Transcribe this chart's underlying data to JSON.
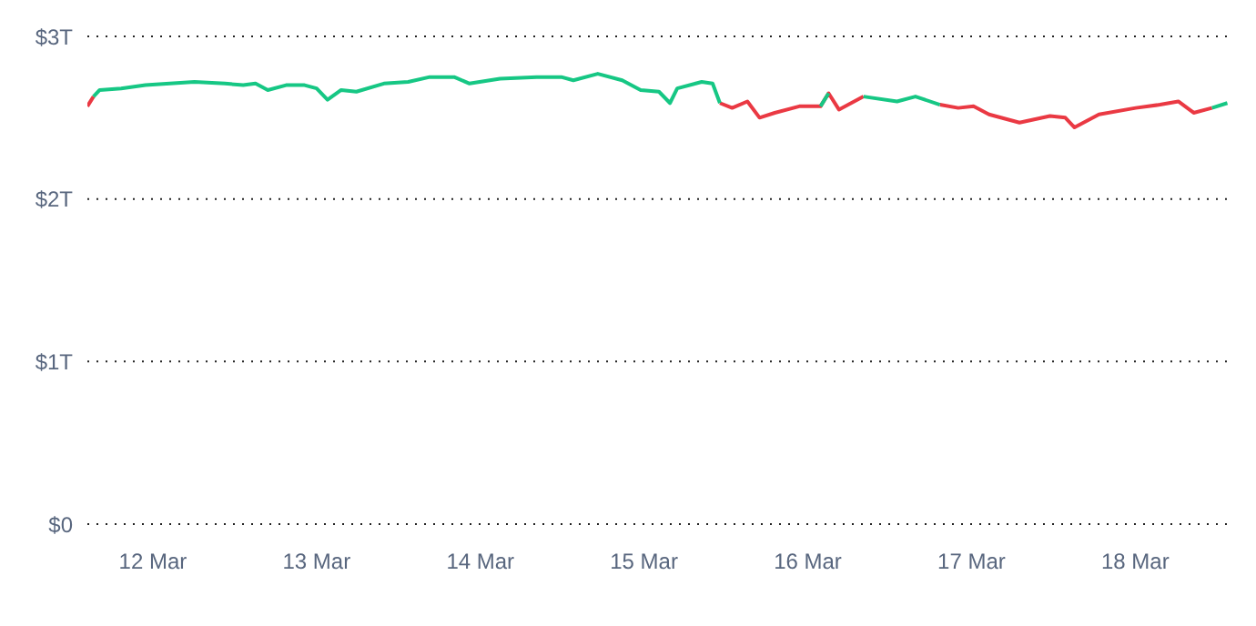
{
  "chart_data": {
    "type": "line",
    "x": [
      "--03-11T14:24",
      "--03-11T15:18",
      "--03-11T16:12",
      "--03-11T19:21",
      "--03-11T22:55",
      "--03-12T02:30",
      "--03-12T06:06",
      "--03-12T10:34",
      "--03-12T13:15",
      "--03-12T15:03",
      "--03-12T16:51",
      "--03-12T19:32",
      "--03-12T22:14",
      "--03-13T00:00",
      "--03-13T01:36",
      "--03-13T03:36",
      "--03-13T05:50",
      "--03-13T09:52",
      "--03-13T13:26",
      "--03-13T16:35",
      "--03-13T20:10",
      "--03-13T22:25",
      "--03-14T02:53",
      "--03-14T08:15",
      "--03-14T11:52",
      "--03-14T13:38",
      "--03-14T17:13",
      "--03-14T20:48",
      "--03-14T23:30",
      "--03-15T02:11",
      "--03-15T03:48",
      "--03-15T04:52",
      "--03-15T08:27",
      "--03-15T10:03",
      "--03-15T11:07",
      "--03-15T12:55",
      "--03-15T15:09",
      "--03-15T16:56",
      "--03-15T19:10",
      "--03-15T22:45",
      "--03-16T01:52",
      "--03-16T03:03",
      "--03-16T04:34",
      "--03-16T08:10",
      "--03-16T13:05",
      "--03-16T15:47",
      "--03-16T19:22",
      "--03-16T22:03",
      "--03-17T00:18",
      "--03-17T02:34",
      "--03-17T07:02",
      "--03-17T11:30",
      "--03-17T13:45",
      "--03-17T15:06",
      "--03-17T18:41",
      "--03-18T00:04",
      "--03-18T03:38",
      "--03-18T06:19",
      "--03-18T08:34",
      "--03-18T11:15",
      "--03-18T13:30"
    ],
    "series": [
      {
        "color": "#ea3943",
        "values": [
          2.57,
          2.63,
          null,
          null,
          null,
          null,
          null,
          null,
          null,
          null,
          null,
          null,
          null,
          null,
          null,
          null,
          null,
          null,
          null,
          null,
          null,
          null,
          null,
          null,
          null,
          null,
          null,
          null,
          null,
          null,
          null,
          null,
          null,
          null,
          2.59,
          2.56,
          2.6,
          2.5,
          2.53,
          2.57,
          2.57,
          2.65,
          2.55,
          2.63,
          null,
          null,
          2.58,
          2.56,
          2.57,
          2.52,
          2.47,
          2.51,
          2.5,
          2.44,
          2.52,
          2.56,
          2.58,
          2.6,
          2.53,
          2.56,
          null
        ]
      },
      {
        "color": "#16c784",
        "values": [
          null,
          2.63,
          2.67,
          2.68,
          2.7,
          2.71,
          2.72,
          2.71,
          2.7,
          2.71,
          2.67,
          2.7,
          2.7,
          2.68,
          2.61,
          2.67,
          2.66,
          2.71,
          2.72,
          2.75,
          2.75,
          2.71,
          2.74,
          2.75,
          2.75,
          2.73,
          2.77,
          2.73,
          2.67,
          2.66,
          2.59,
          2.68,
          2.72,
          2.71,
          2.59,
          null,
          null,
          null,
          null,
          null,
          2.57,
          2.65,
          null,
          2.63,
          2.6,
          2.63,
          2.58,
          null,
          null,
          null,
          null,
          null,
          null,
          null,
          null,
          null,
          null,
          null,
          null,
          2.56,
          2.59
        ]
      }
    ],
    "xlim": [
      "--03-11T14:24",
      "--03-18T14:30"
    ],
    "xticks": [
      {
        "value": "--03-12",
        "label": "12 Mar"
      },
      {
        "value": "--03-13",
        "label": "13 Mar"
      },
      {
        "value": "--03-14",
        "label": "14 Mar"
      },
      {
        "value": "--03-15",
        "label": "15 Mar"
      },
      {
        "value": "--03-16",
        "label": "16 Mar"
      },
      {
        "value": "--03-17",
        "label": "17 Mar"
      },
      {
        "value": "--03-18",
        "label": "18 Mar"
      }
    ],
    "ylim": [
      0,
      3
    ],
    "yticks": [
      {
        "value": 0,
        "label": "$0"
      },
      {
        "value": 1,
        "label": "$1T"
      },
      {
        "value": 2,
        "label": "$2T"
      },
      {
        "value": 3,
        "label": "$3T"
      }
    ],
    "grid": "y",
    "legend": false,
    "marker": "none",
    "line_style": "solid"
  }
}
